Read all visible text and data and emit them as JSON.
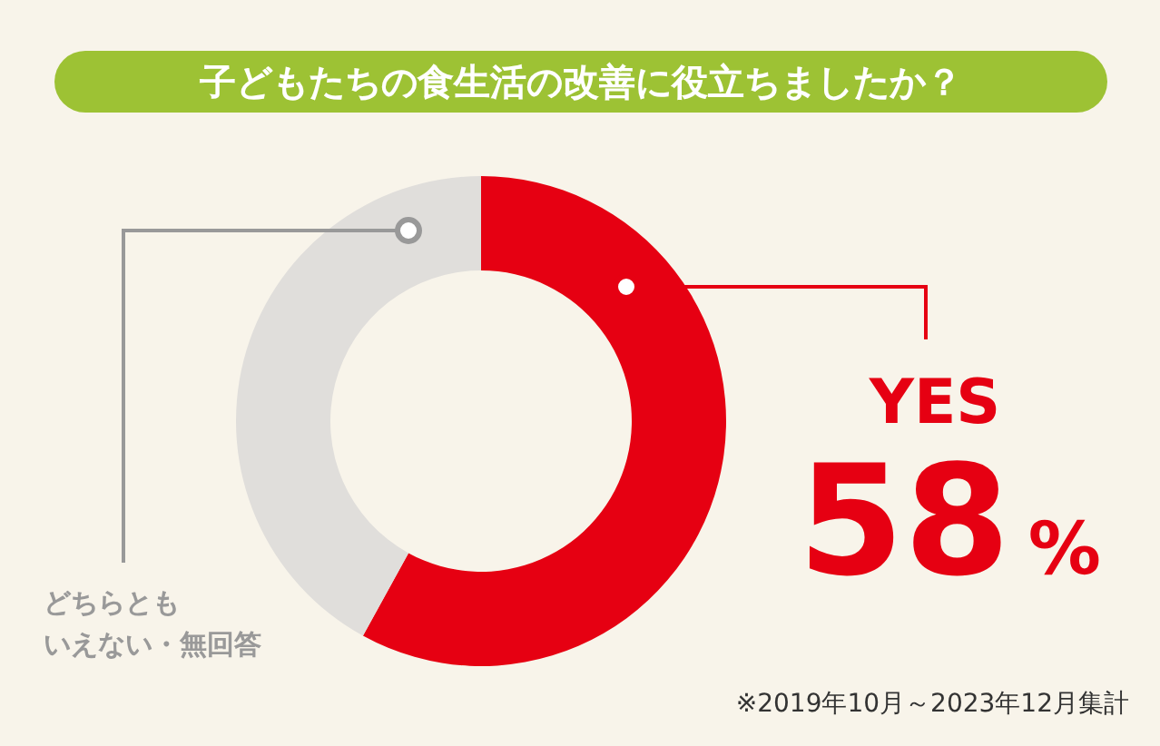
{
  "chart_data": {
    "type": "donut",
    "title": "子どもたちの食生活の改善に役立ちましたか？",
    "categories": [
      "YES",
      "どちらともいえない・無回答"
    ],
    "values": [
      58,
      42
    ],
    "colors": [
      "#e60012",
      "#e0dedb"
    ],
    "value_labels": [
      "58%",
      null
    ],
    "annotations": [
      "※2019年10月～2023年12月集計"
    ]
  }
}
